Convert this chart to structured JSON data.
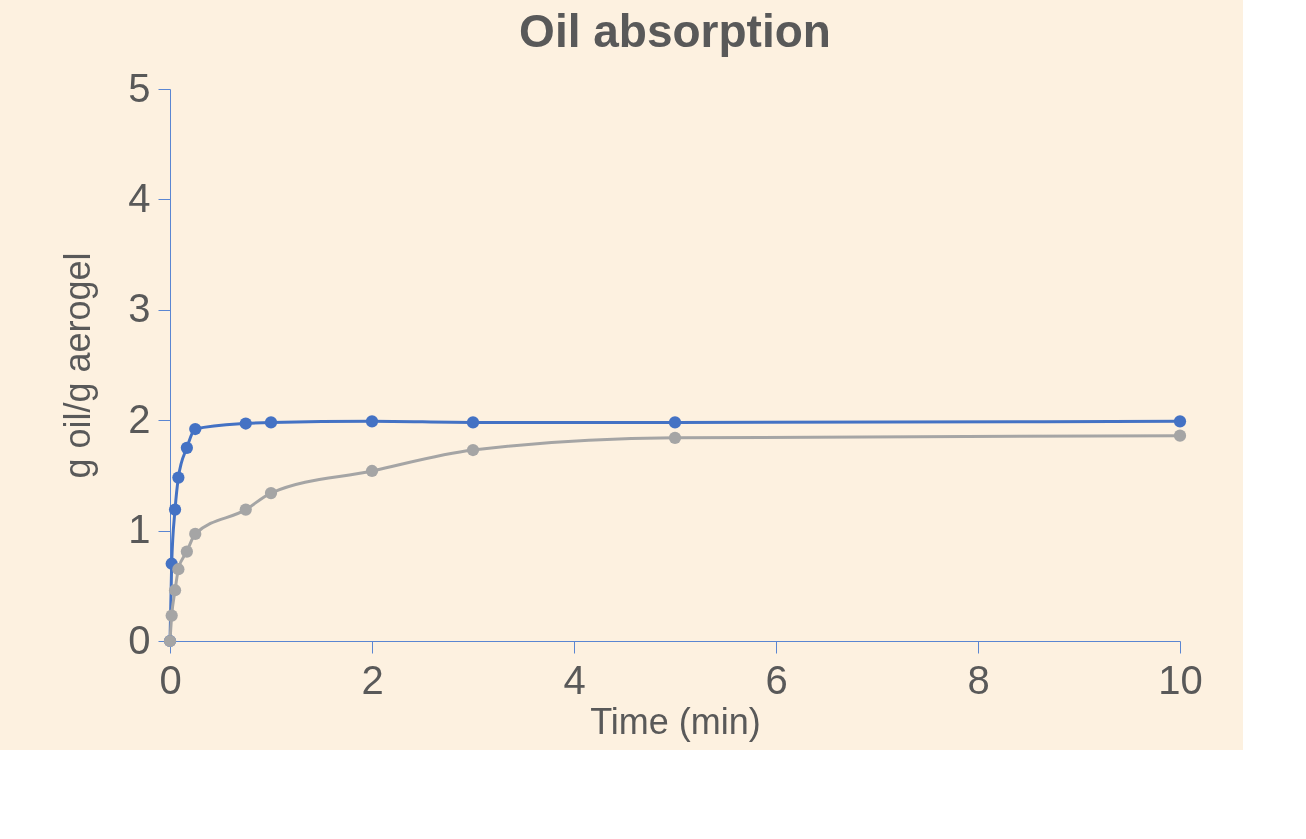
{
  "chart_data": {
    "type": "line",
    "title": "Oil absorption",
    "xlabel": "Time (min)",
    "ylabel": "g oil/g aerogel",
    "x": [
      0,
      0.0167,
      0.05,
      0.083,
      0.167,
      0.25,
      0.75,
      1,
      2,
      3,
      5,
      10
    ],
    "series": [
      {
        "color": "#4472c4",
        "values": [
          0,
          0.7,
          1.19,
          1.48,
          1.75,
          1.92,
          1.97,
          1.98,
          1.99,
          1.98,
          1.98,
          1.99
        ]
      },
      {
        "color": "#a5a5a5",
        "values": [
          0,
          0.23,
          0.46,
          0.65,
          0.81,
          0.97,
          1.19,
          1.34,
          1.54,
          1.73,
          1.84,
          1.86
        ]
      }
    ],
    "xlim": [
      0,
      10
    ],
    "xticks": [
      0,
      2,
      4,
      6,
      8,
      10
    ],
    "ylim": [
      0,
      5
    ],
    "yticks": [
      0,
      1,
      2,
      3,
      4,
      5
    ],
    "grid": false,
    "legend": false,
    "marker": "circle",
    "line_style": "solid"
  }
}
